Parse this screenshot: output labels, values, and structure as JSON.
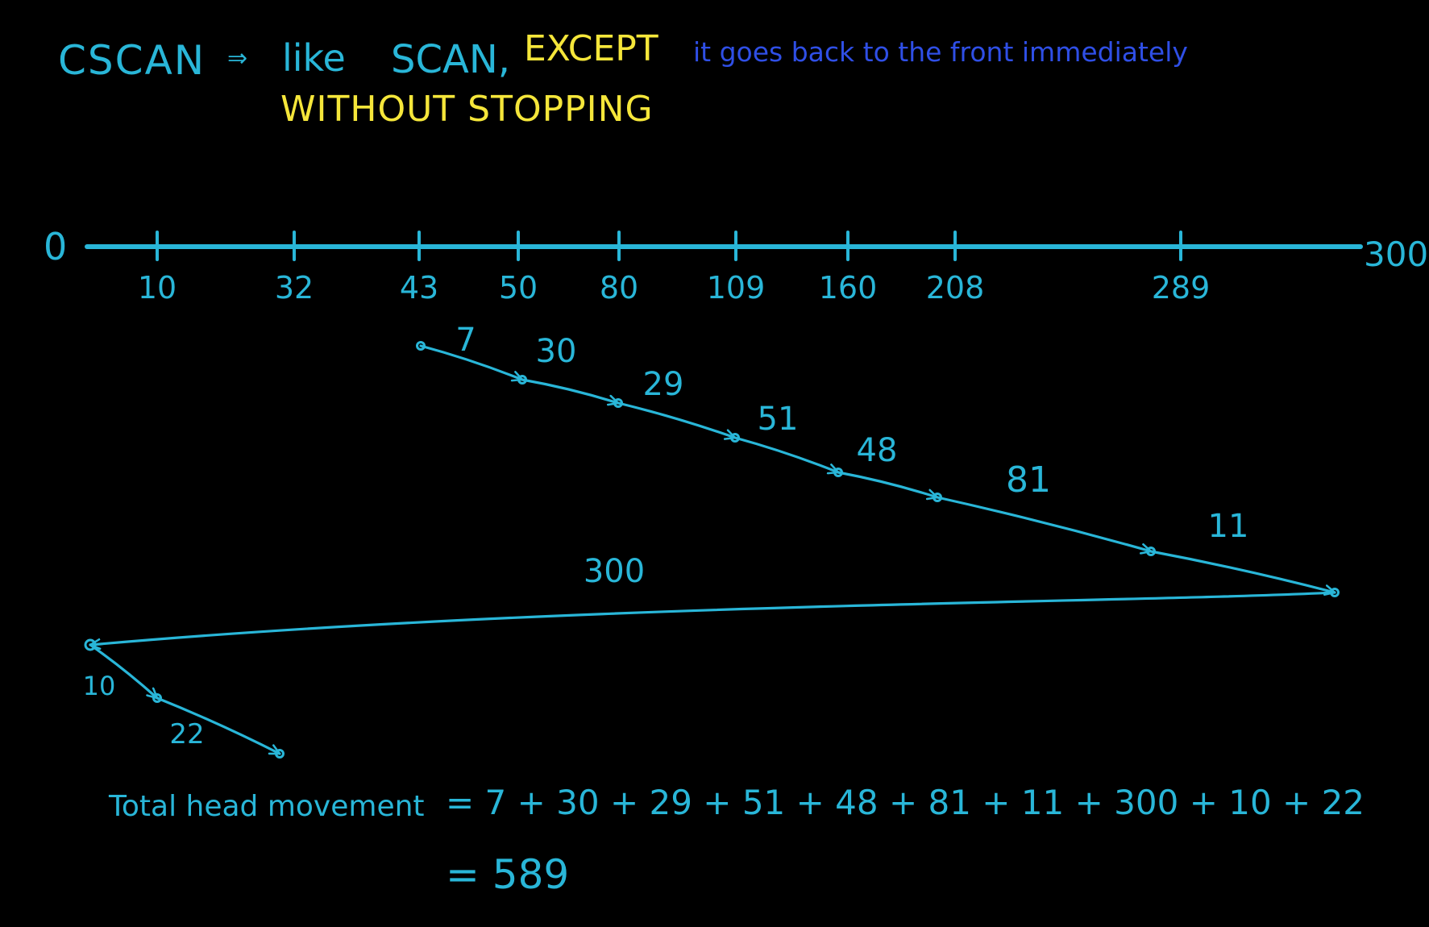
{
  "colors": {
    "background": "#000000",
    "cyan": "#29b6d8",
    "yellow": "#f5e63a",
    "blue": "#2f4fe6"
  },
  "header": {
    "term": "CSCAN",
    "arrow": "⇒",
    "like_text": "like",
    "scan_word": "SCAN,",
    "except_text": "EXCEPT",
    "blue_text": "it goes back to the front immediately",
    "line2": "WITHOUT STOPPING"
  },
  "number_line": {
    "start_label": "0",
    "end_label": "300",
    "ticks": [
      "10",
      "32",
      "43",
      "50",
      "80",
      "109",
      "160",
      "208",
      "289"
    ]
  },
  "path": {
    "segment_labels": [
      "7",
      "30",
      "29",
      "51",
      "48",
      "81",
      "11",
      "300",
      "10",
      "22"
    ]
  },
  "formula": {
    "prefix": "Total head movement",
    "equation": "= 7 + 30 + 29 + 51 + 48 + 81 + 11 + 300 + 10 + 22",
    "result": "= 589"
  }
}
